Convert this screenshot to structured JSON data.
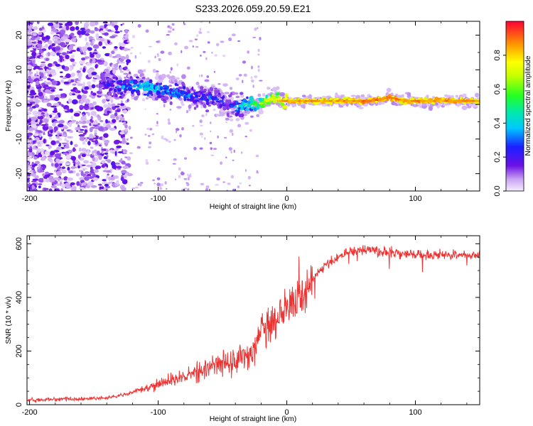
{
  "title": "S233.2026.059.20.59.E21",
  "chart_data": [
    {
      "type": "heatmap",
      "name": "spectrogram",
      "xlabel": "Height of straight line (km)",
      "ylabel": "Frequency (Hz)",
      "xlim": [
        -202,
        150
      ],
      "ylim": [
        -25,
        24
      ],
      "xticks": [
        -200,
        -100,
        0,
        100
      ],
      "xtick_labels": [
        "-200",
        "-100",
        "0",
        "100"
      ],
      "yticks": [
        -20,
        -10,
        0,
        10,
        20
      ],
      "ytick_labels": [
        "-20",
        "-10",
        "0",
        "10",
        "20"
      ],
      "colorbar": {
        "label": "Normalized spectral amplitude",
        "range": [
          0,
          1
        ],
        "ticks": [
          0.0,
          0.2,
          0.4,
          0.6,
          0.8
        ],
        "tick_labels": [
          "0.0",
          "0.2",
          "0.4",
          "0.6",
          "0.8"
        ]
      },
      "ridge": {
        "x": [
          -145,
          -130,
          -110,
          -95,
          -80,
          -65,
          -55,
          -45,
          -38,
          -30,
          -22,
          -15,
          -10,
          -5,
          0,
          20,
          40,
          55,
          65,
          80,
          92,
          100,
          120,
          150
        ],
        "frequency": [
          7,
          5,
          5,
          4,
          3,
          2,
          2,
          0,
          -1,
          0,
          0,
          1,
          2,
          1,
          1,
          1,
          1,
          1,
          1,
          2,
          1,
          1,
          1,
          1
        ],
        "amplitude": [
          0.25,
          0.4,
          0.5,
          0.45,
          0.4,
          0.35,
          0.35,
          0.3,
          0.45,
          0.55,
          0.65,
          0.75,
          0.8,
          0.85,
          0.9,
          0.92,
          0.9,
          0.93,
          0.95,
          0.95,
          0.9,
          0.92,
          0.92,
          0.9
        ]
      }
    },
    {
      "type": "line",
      "name": "snr",
      "xlabel": "Height of straight line (km)",
      "ylabel": "SNR (10 * v/v)",
      "xlim": [
        -202,
        150
      ],
      "ylim": [
        0,
        630
      ],
      "xticks": [
        -200,
        -100,
        0,
        100
      ],
      "xtick_labels": [
        "-200",
        "-100",
        "0",
        "100"
      ],
      "yticks": [
        0,
        200,
        400,
        600
      ],
      "ytick_labels": [
        "0",
        "200",
        "400",
        "600"
      ],
      "series": [
        {
          "name": "SNR",
          "color": "#ee3333",
          "x": [
            -202,
            -180,
            -160,
            -140,
            -125,
            -110,
            -100,
            -90,
            -80,
            -70,
            -60,
            -50,
            -40,
            -30,
            -25,
            -20,
            -15,
            -10,
            -5,
            0,
            5,
            10,
            15,
            20,
            30,
            40,
            50,
            60,
            80,
            100,
            120,
            150
          ],
          "y": [
            18,
            20,
            22,
            25,
            40,
            60,
            75,
            90,
            105,
            120,
            140,
            155,
            165,
            180,
            220,
            260,
            290,
            310,
            330,
            350,
            370,
            400,
            430,
            470,
            520,
            550,
            570,
            575,
            570,
            560,
            560,
            555
          ]
        }
      ]
    }
  ]
}
